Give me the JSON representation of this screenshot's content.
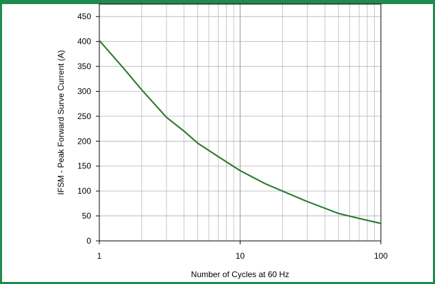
{
  "chart_data": {
    "type": "line",
    "title": "",
    "xlabel": "Number of Cycles at 60 Hz",
    "ylabel": "IFSM - Peak Forward Surve Current (A)",
    "xscale": "log",
    "xlim": [
      1,
      100
    ],
    "ylim": [
      0,
      475
    ],
    "x_ticks": [
      1,
      10,
      100
    ],
    "x_tick_labels": [
      "1",
      "10",
      "100"
    ],
    "y_ticks": [
      0,
      50,
      100,
      150,
      200,
      250,
      300,
      350,
      400,
      450
    ],
    "y_tick_labels": [
      "0",
      "50",
      "100",
      "150",
      "200",
      "250",
      "300",
      "350",
      "400",
      "450"
    ],
    "grid": true,
    "legend": "none",
    "line_color": "#2e7d32",
    "series": [
      {
        "x": [
          1,
          1.5,
          2,
          3,
          4,
          5,
          7,
          10,
          15,
          20,
          30,
          50,
          70,
          100
        ],
        "values": [
          402,
          345,
          303,
          248,
          220,
          196,
          169,
          141,
          115,
          100,
          79,
          55,
          45,
          35
        ]
      }
    ]
  }
}
